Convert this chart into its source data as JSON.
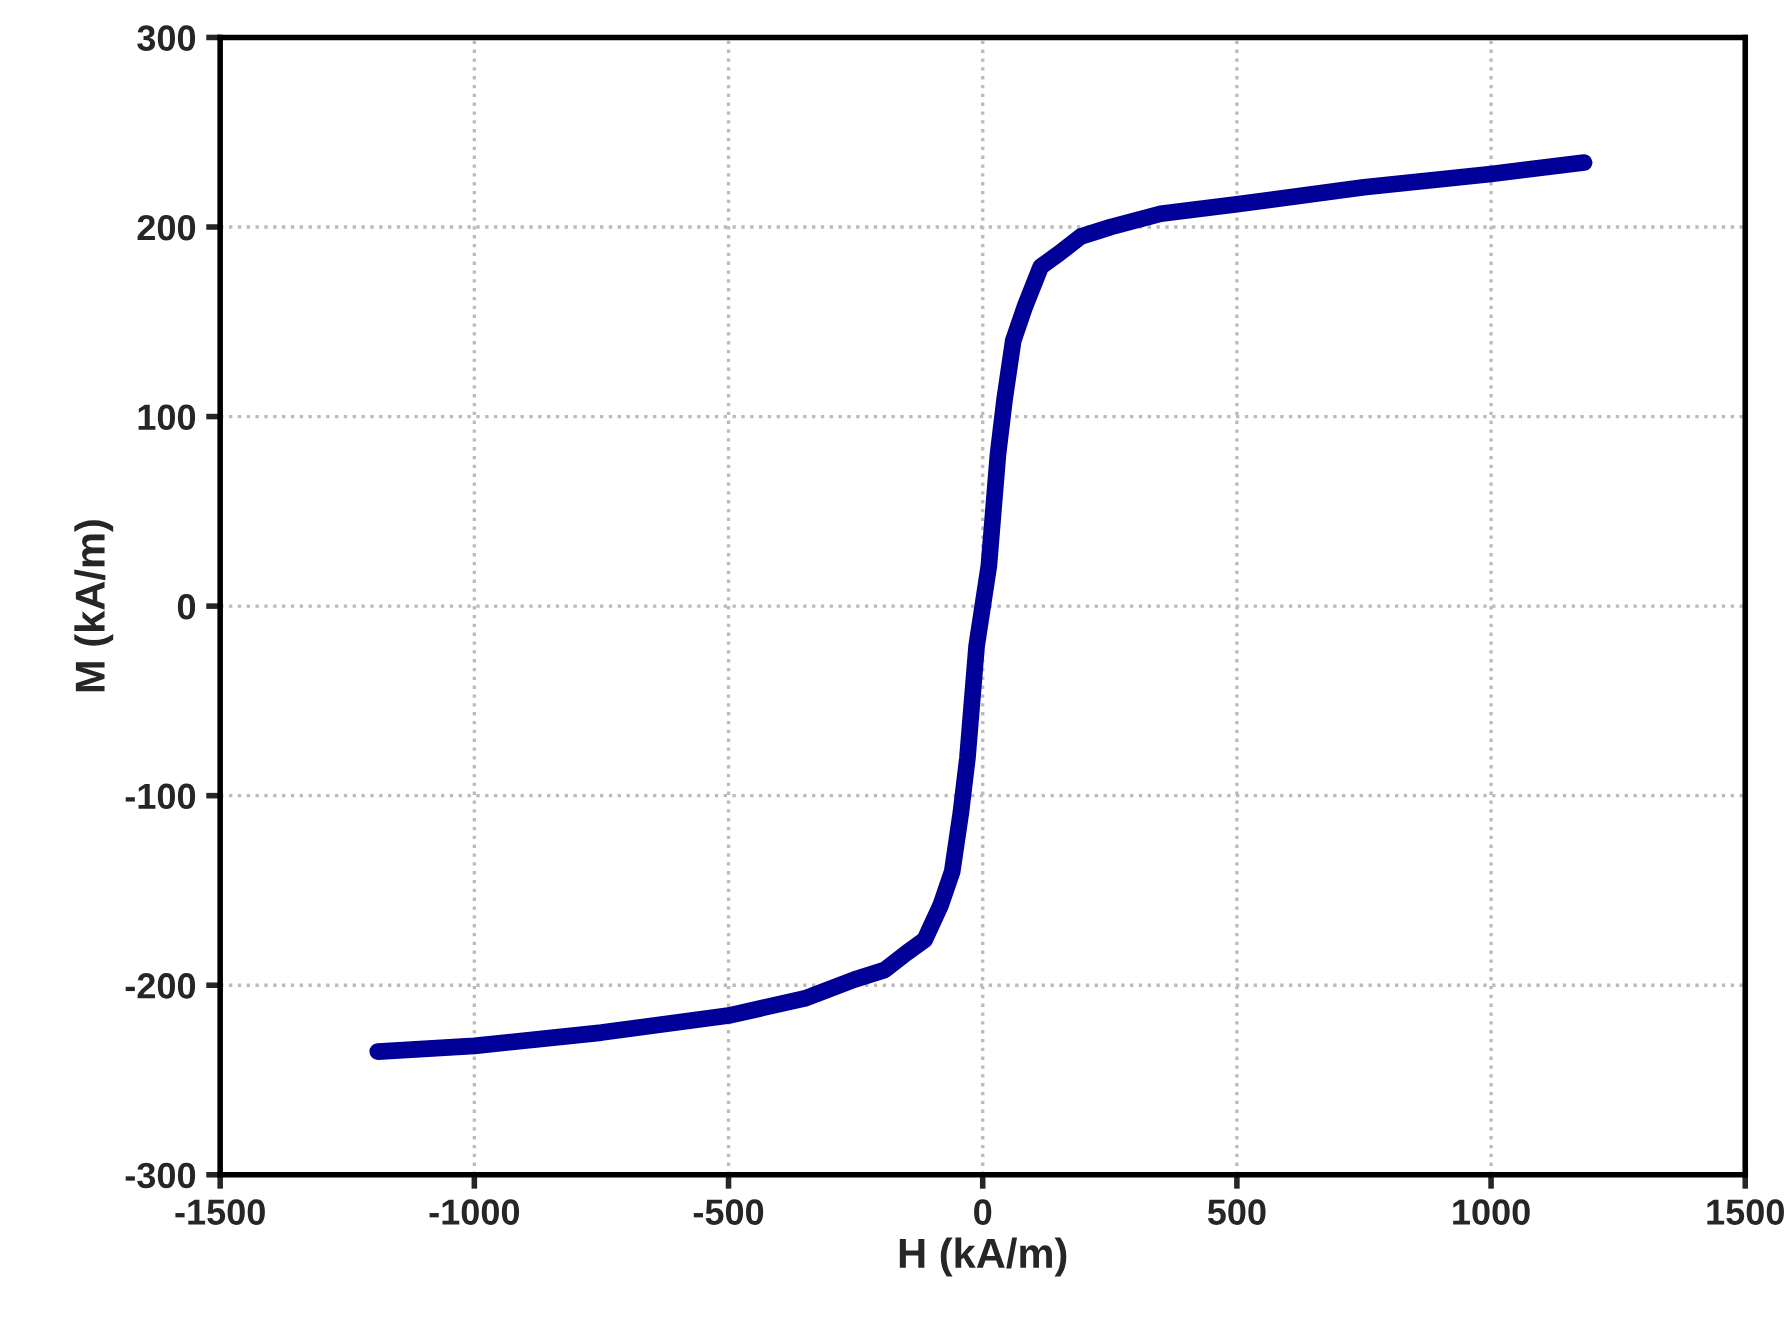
{
  "chart_data": {
    "type": "line",
    "xlabel": "H (kA/m)",
    "ylabel": "M (kA/m)",
    "xlim": [
      -1500,
      1500
    ],
    "xticks": [
      -1500,
      -1000,
      -500,
      0,
      500,
      1000,
      1500
    ],
    "ylim": [
      -300,
      300
    ],
    "yticks": [
      -300,
      -200,
      -100,
      0,
      100,
      200,
      300
    ],
    "grid": true,
    "marker": "none",
    "line_style": "solid",
    "series": [
      {
        "color": "#000099",
        "x": [
          -1190,
          -1000,
          -750,
          -500,
          -350,
          -252,
          -193,
          -150,
          -114,
          -83,
          -60,
          -43,
          -30,
          -12,
          0,
          12,
          30,
          43,
          60,
          83,
          114,
          150,
          193,
          252,
          350,
          500,
          750,
          1000,
          1183
        ],
        "values": [
          -235,
          -232,
          -225,
          -216,
          -207,
          -197,
          -192,
          -183,
          -176,
          -158,
          -140,
          -109,
          -80,
          -21,
          0,
          21,
          80,
          109,
          140,
          158,
          179,
          186,
          195,
          200,
          207,
          212,
          221,
          228,
          234
        ]
      }
    ]
  }
}
